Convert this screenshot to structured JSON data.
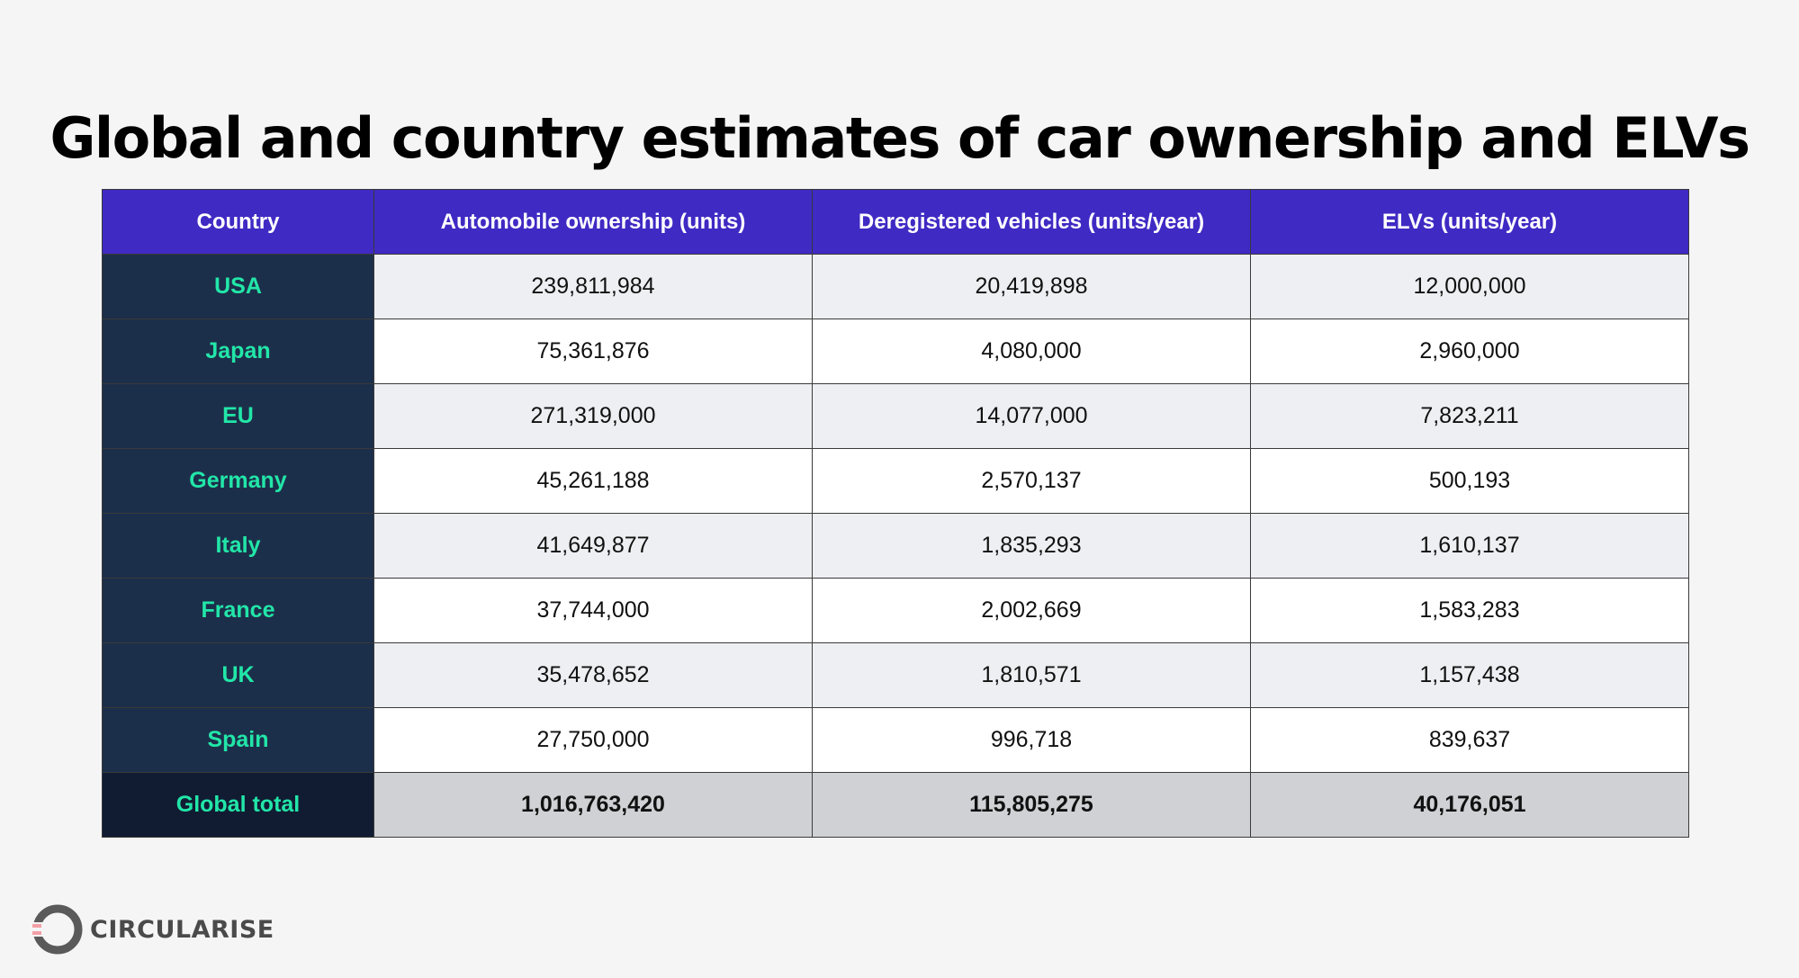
{
  "title": "Global and country estimates of car ownership and ELVs",
  "chart_data": {
    "type": "table",
    "columns": [
      "Country",
      "Automobile ownership (units)",
      "Deregistered vehicles (units/year)",
      "ELVs (units/year)"
    ],
    "rows": [
      {
        "country": "USA",
        "ownership": "239,811,984",
        "deregistered": "20,419,898",
        "elvs": "12,000,000"
      },
      {
        "country": "Japan",
        "ownership": "75,361,876",
        "deregistered": "4,080,000",
        "elvs": "2,960,000"
      },
      {
        "country": "EU",
        "ownership": "271,319,000",
        "deregistered": "14,077,000",
        "elvs": "7,823,211"
      },
      {
        "country": "Germany",
        "ownership": "45,261,188",
        "deregistered": "2,570,137",
        "elvs": "500,193"
      },
      {
        "country": "Italy",
        "ownership": "41,649,877",
        "deregistered": "1,835,293",
        "elvs": "1,610,137"
      },
      {
        "country": "France",
        "ownership": "37,744,000",
        "deregistered": "2,002,669",
        "elvs": "1,583,283"
      },
      {
        "country": "UK",
        "ownership": "35,478,652",
        "deregistered": "1,810,571",
        "elvs": "1,157,438"
      },
      {
        "country": "Spain",
        "ownership": "27,750,000",
        "deregistered": "996,718",
        "elvs": "839,637"
      }
    ],
    "total": {
      "country": "Global total",
      "ownership": "1,016,763,420",
      "deregistered": "115,805,275",
      "elvs": "40,176,051"
    }
  },
  "colors": {
    "header_bg": "#3f2ac4",
    "country_col_bg": "#1c2f4a",
    "country_text": "#22e6a8",
    "total_row_bg": "#cfd1d5"
  },
  "logo": {
    "text": "CIRCULARISE",
    "icon": "circularise-ring-icon"
  }
}
